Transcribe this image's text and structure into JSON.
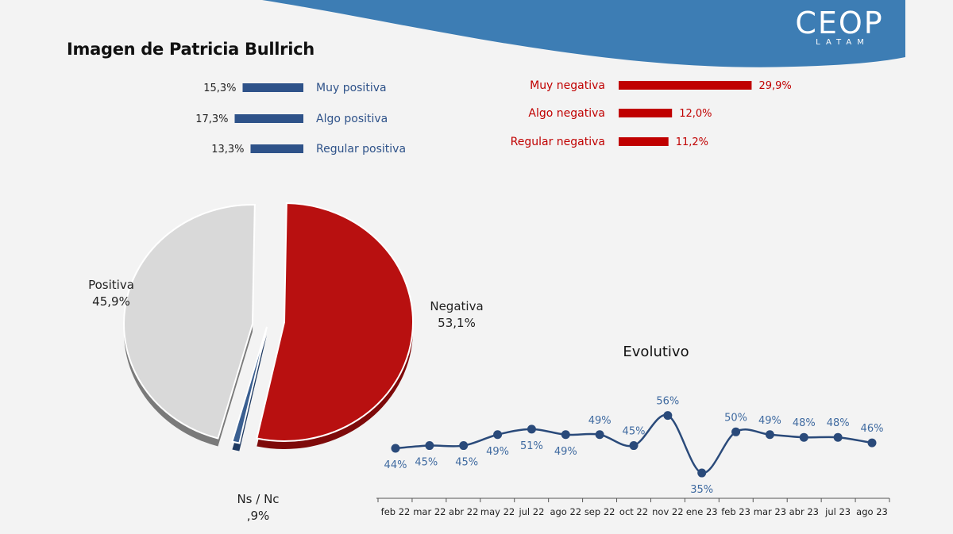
{
  "header": {
    "title": "Imagen de  Patricia Bullrich",
    "logo_main": "CEOP",
    "logo_sub": "LATAM"
  },
  "colors": {
    "positive": "#2e5289",
    "positive_pie": "#3a5f91",
    "negative": "#c00000",
    "negative_pie": "#b81010",
    "line": "#2a4a7a",
    "line_label": "#3f6aa0",
    "wave": "#3d7db4"
  },
  "chart_data": [
    {
      "type": "bar",
      "orientation": "horizontal",
      "side": "positive",
      "categories": [
        "Muy positiva",
        "Algo positiva",
        "Regular positiva"
      ],
      "values": [
        15.3,
        17.3,
        13.3
      ],
      "value_labels": [
        "15,3%",
        "17,3%",
        "13,3%"
      ]
    },
    {
      "type": "bar",
      "orientation": "horizontal",
      "side": "negative",
      "categories": [
        "Muy negativa",
        "Algo negativa",
        "Regular negativa"
      ],
      "values": [
        29.9,
        12.0,
        11.2
      ],
      "value_labels": [
        "29,9%",
        "12,0%",
        "11,2%"
      ]
    },
    {
      "type": "pie",
      "slices": [
        {
          "name": "Positiva",
          "value": 45.9,
          "label": "45,9%"
        },
        {
          "name": "Negativa",
          "value": 53.1,
          "label": "53,1%"
        },
        {
          "name": "Ns / Nc",
          "value": 0.9,
          "label": ",9%"
        }
      ]
    },
    {
      "type": "line",
      "title": "Evolutivo",
      "categories": [
        "feb 22",
        "mar 22",
        "abr 22",
        "may 22",
        "jul 22",
        "ago 22",
        "sep 22",
        "oct 22",
        "nov 22",
        "ene 23",
        "feb 23",
        "mar 23",
        "abr 23",
        "jul 23",
        "ago 23"
      ],
      "values": [
        44,
        45,
        45,
        49,
        51,
        49,
        49,
        45,
        56,
        35,
        50,
        49,
        48,
        48,
        46
      ],
      "value_labels": [
        "44%",
        "45%",
        "45%",
        "49%",
        "51%",
        "49%",
        "49%",
        "45%",
        "56%",
        "35%",
        "50%",
        "49%",
        "48%",
        "48%",
        "46%"
      ]
    }
  ]
}
